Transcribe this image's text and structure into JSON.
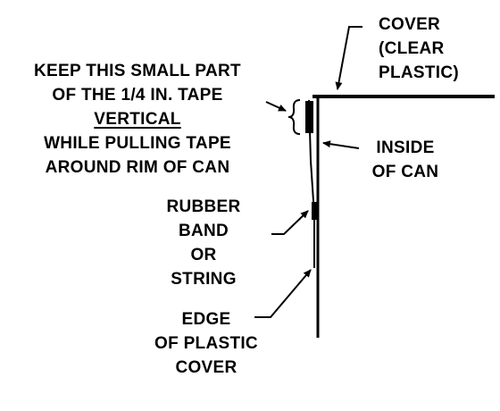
{
  "labels": {
    "cover": [
      "COVER",
      "(CLEAR",
      "PLASTIC)"
    ],
    "keep": [
      "KEEP THIS SMALL PART",
      "OF THE 1/4 IN. TAPE",
      "VERTICAL",
      "WHILE PULLING TAPE",
      "AROUND RIM OF CAN"
    ],
    "inside": [
      "INSIDE",
      "OF CAN"
    ],
    "rubber": [
      "RUBBER",
      "BAND",
      "OR",
      "STRING"
    ],
    "edge": [
      "EDGE",
      "OF PLASTIC",
      "COVER"
    ]
  }
}
